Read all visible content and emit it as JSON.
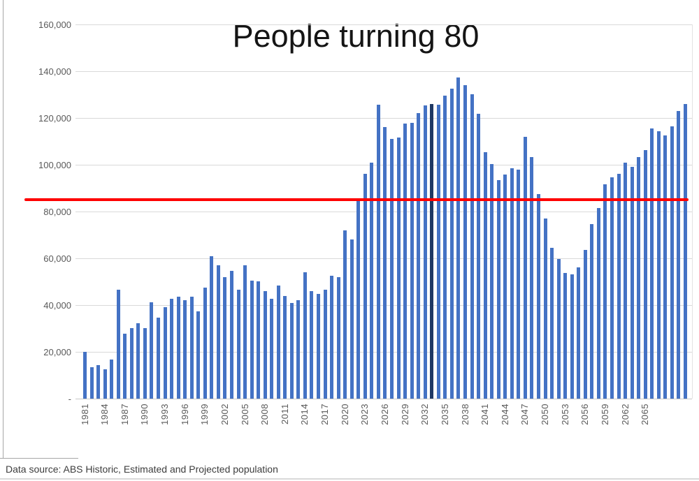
{
  "title": "People turning 80",
  "source_note": "Data source: ABS Historic, Estimated and Projected population",
  "chart_data": {
    "type": "bar",
    "title": "People turning 80",
    "xlabel": "",
    "ylabel": "",
    "ylim": [
      0,
      160000
    ],
    "ytick_step": 20000,
    "ytick_labels": [
      "-",
      "20,000",
      "40,000",
      "60,000",
      "80,000",
      "100,000",
      "120,000",
      "140,000",
      "160,000"
    ],
    "xtick_labels": [
      "1981",
      "1984",
      "1987",
      "1990",
      "1993",
      "1996",
      "1999",
      "2002",
      "2005",
      "2008",
      "2011",
      "2014",
      "2017",
      "2020",
      "2023",
      "2026",
      "2029",
      "2032",
      "2035",
      "2038",
      "2041",
      "2044",
      "2047",
      "2050",
      "2053",
      "2056",
      "2059",
      "2062",
      "2065"
    ],
    "grid": true,
    "legend_position": "none",
    "bar_color": "#4472c4",
    "highlight_year": 2033,
    "highlight_color": "#1f3864",
    "reference_line": {
      "value": 85000,
      "color": "#fe0000"
    },
    "categories": [
      1981,
      1982,
      1983,
      1984,
      1985,
      1986,
      1987,
      1988,
      1989,
      1990,
      1991,
      1992,
      1993,
      1994,
      1995,
      1996,
      1997,
      1998,
      1999,
      2000,
      2001,
      2002,
      2003,
      2004,
      2005,
      2006,
      2007,
      2008,
      2009,
      2010,
      2011,
      2012,
      2013,
      2014,
      2015,
      2016,
      2017,
      2018,
      2019,
      2020,
      2021,
      2022,
      2023,
      2024,
      2025,
      2026,
      2027,
      2028,
      2029,
      2030,
      2031,
      2032,
      2033,
      2034,
      2035,
      2036,
      2037,
      2038,
      2039,
      2040,
      2041,
      2042,
      2043,
      2044,
      2045,
      2046,
      2047,
      2048,
      2049,
      2050,
      2051,
      2052,
      2053,
      2054,
      2055,
      2056,
      2057,
      2058,
      2059,
      2060,
      2061,
      2062,
      2063,
      2064,
      2065,
      2066,
      2067,
      2068,
      2069,
      2070,
      2071
    ],
    "values": [
      20000,
      13500,
      14300,
      12600,
      16800,
      46500,
      27700,
      30000,
      32300,
      30200,
      41200,
      34500,
      39100,
      42800,
      43500,
      42000,
      43700,
      37300,
      47400,
      61000,
      57000,
      52000,
      54600,
      46600,
      57000,
      50400,
      50000,
      46000,
      42800,
      48500,
      43900,
      41000,
      42200,
      54100,
      46100,
      44900,
      46600,
      52400,
      52000,
      72000,
      68000,
      84400,
      96000,
      100800,
      125800,
      116100,
      111100,
      111600,
      117500,
      118000,
      122000,
      125400,
      125900,
      125800,
      129500,
      132500,
      137400,
      134000,
      130000,
      121900,
      105300,
      100200,
      93500,
      95700,
      98400,
      98000,
      111800,
      103400,
      87500,
      76900,
      64500,
      59700,
      53800,
      53100,
      56000,
      63700,
      74500,
      81500,
      91700,
      94500,
      96200,
      101000,
      99000,
      103400,
      106400,
      115600,
      114300,
      112600,
      116300,
      123100,
      125900
    ]
  }
}
